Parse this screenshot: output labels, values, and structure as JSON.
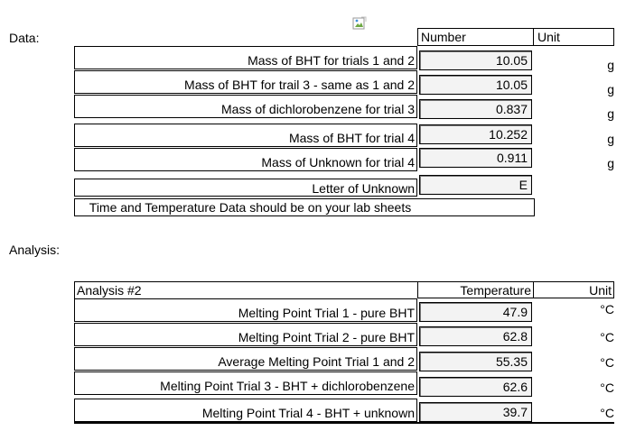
{
  "data_section": {
    "label": "Data:",
    "headers": {
      "number": "Number",
      "unit": "Unit"
    },
    "rows": [
      {
        "label": "Mass of BHT for trials 1 and 2",
        "value": "10.05",
        "unit": "g"
      },
      {
        "label": "Mass of BHT for trail 3 - same as 1 and 2",
        "value": "10.05",
        "unit": "g"
      },
      {
        "label": "Mass of dichlorobenzene for trial 3",
        "value": "0.837",
        "unit": "g"
      },
      {
        "label": "Mass of BHT for trial 4",
        "value": "10.252",
        "unit": "g"
      },
      {
        "label": "Mass of Unknown for trial 4",
        "value": "0.911",
        "unit": "g"
      },
      {
        "label": "Letter of Unknown",
        "value": "E",
        "unit": ""
      }
    ],
    "note": "Time and Temperature Data should be on your lab sheets"
  },
  "analysis_section": {
    "label": "Analysis:",
    "title": "Analysis #2",
    "headers": {
      "temperature": "Temperature",
      "unit": "Unit"
    },
    "rows": [
      {
        "label": "Melting Point Trial 1 - pure BHT",
        "value": "47.9",
        "unit": "°C"
      },
      {
        "label": "Melting Point Trial 2 - pure BHT",
        "value": "62.8",
        "unit": "°C"
      },
      {
        "label": "Average Melting Point Trial 1 and 2",
        "value": "55.35",
        "unit": "°C"
      },
      {
        "label": "Melting Point Trial 3 - BHT + dichlorobenzene",
        "value": "62.6",
        "unit": "°C"
      },
      {
        "label": "Melting Point Trial 4 - BHT + unknown",
        "value": "39.7",
        "unit": "°C"
      }
    ]
  },
  "icons": {
    "broken_image": "broken-image-icon"
  }
}
